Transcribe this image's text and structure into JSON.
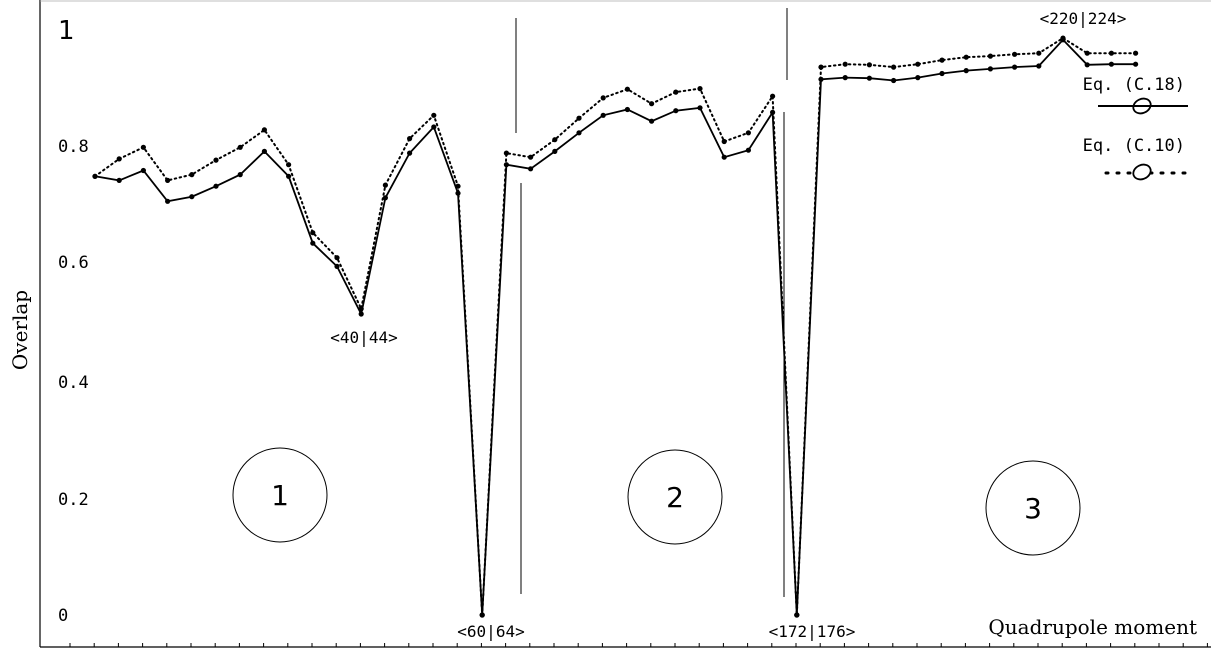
{
  "chart_data": {
    "type": "line",
    "xlabel": "Quadrupole moment",
    "ylabel": "Overlap",
    "ylim": [
      0,
      1
    ],
    "y_ticks": [
      {
        "value": 0,
        "label": "0"
      },
      {
        "value": 0.2,
        "label": "0.2"
      },
      {
        "value": 0.4,
        "label": "0.4"
      },
      {
        "value": 0.6,
        "label": "0.6"
      },
      {
        "value": 0.8,
        "label": "0.8"
      },
      {
        "value": 1,
        "label": "1"
      }
    ],
    "x_index_range": [
      0,
      43
    ],
    "series": [
      {
        "name": "Eq. (C.18)",
        "style": "solid",
        "values": [
          0.755,
          0.748,
          0.765,
          0.712,
          0.72,
          0.738,
          0.758,
          0.798,
          0.755,
          0.64,
          0.6,
          0.518,
          0.718,
          0.795,
          0.84,
          0.726,
          0.0,
          0.775,
          0.768,
          0.798,
          0.83,
          0.86,
          0.87,
          0.85,
          0.868,
          0.873,
          0.788,
          0.8,
          0.865,
          0.0,
          0.922,
          0.925,
          0.924,
          0.92,
          0.925,
          0.932,
          0.937,
          0.94,
          0.943,
          0.945,
          0.99,
          0.947,
          0.948,
          0.948
        ]
      },
      {
        "name": "Eq. (C.10)",
        "style": "dotted",
        "values": [
          0.755,
          0.785,
          0.805,
          0.748,
          0.758,
          0.783,
          0.805,
          0.835,
          0.775,
          0.658,
          0.615,
          0.527,
          0.74,
          0.82,
          0.86,
          0.738,
          0.0,
          0.795,
          0.788,
          0.818,
          0.855,
          0.89,
          0.905,
          0.88,
          0.9,
          0.906,
          0.815,
          0.83,
          0.893,
          0.0,
          0.943,
          0.948,
          0.947,
          0.943,
          0.948,
          0.955,
          0.96,
          0.962,
          0.965,
          0.967,
          0.993,
          0.967,
          0.967,
          0.967
        ]
      }
    ],
    "annotations": [
      {
        "text": "<40|44>",
        "index": 11,
        "value": 0.518
      },
      {
        "text": "<60|64>",
        "index": 16,
        "value": 0.0
      },
      {
        "text": "<172|176>",
        "index": 29,
        "value": 0.0
      },
      {
        "text": "<220|224>",
        "index": 40,
        "value": 0.99
      }
    ],
    "region_labels": [
      "1",
      "2",
      "3"
    ],
    "legend": {
      "placement": "top-right",
      "items": [
        {
          "label": "Eq. (C.18)",
          "symbol": "—O—"
        },
        {
          "label": "Eq. (C.10)",
          "symbol": "··O···"
        }
      ]
    },
    "grid": false
  }
}
